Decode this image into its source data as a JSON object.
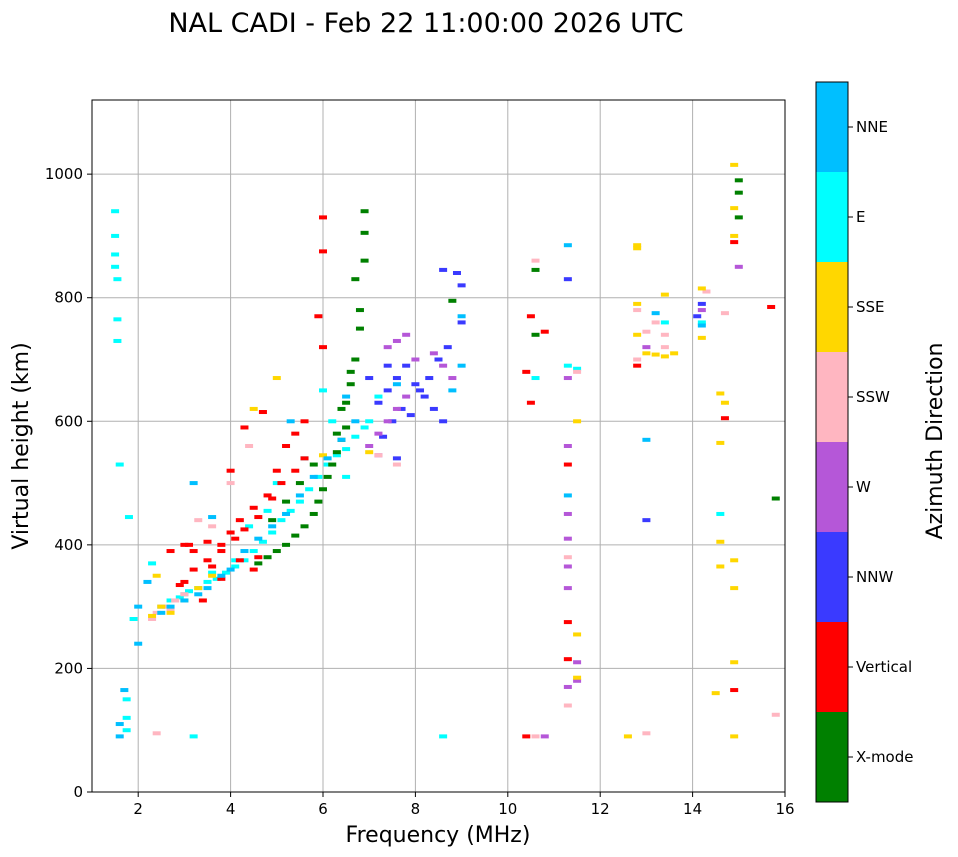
{
  "chart_data": {
    "type": "scatter",
    "title": "NAL CADI - Feb 22 11:00:00 2026 UTC",
    "xlabel": "Frequency (MHz)",
    "ylabel": "Virtual height (km)",
    "xlim": [
      1,
      16
    ],
    "ylim": [
      0,
      1120
    ],
    "xticks": [
      2,
      4,
      6,
      8,
      10,
      12,
      14,
      16
    ],
    "yticks": [
      0,
      200,
      400,
      600,
      800,
      1000
    ],
    "grid": true,
    "colorbar": {
      "label": "Azimuth Direction",
      "categories": [
        {
          "name": "X-mode",
          "color": "#008000"
        },
        {
          "name": "Vertical",
          "color": "#ff0000"
        },
        {
          "name": "NNW",
          "color": "#3a3aff"
        },
        {
          "name": "W",
          "color": "#b557d8"
        },
        {
          "name": "SSW",
          "color": "#ffb6c1"
        },
        {
          "name": "SSE",
          "color": "#ffd700"
        },
        {
          "name": "E",
          "color": "#00ffff"
        },
        {
          "name": "NNE",
          "color": "#00bfff"
        }
      ]
    },
    "series": [
      {
        "name": "E",
        "points": [
          [
            1.5,
            940
          ],
          [
            1.5,
            900
          ],
          [
            1.5,
            870
          ],
          [
            1.5,
            850
          ],
          [
            1.55,
            830
          ],
          [
            1.55,
            765
          ],
          [
            1.55,
            730
          ],
          [
            1.6,
            530
          ],
          [
            1.8,
            445
          ],
          [
            1.75,
            150
          ],
          [
            1.75,
            120
          ],
          [
            1.75,
            100
          ],
          [
            1.9,
            280
          ],
          [
            2.3,
            370
          ],
          [
            2.5,
            300
          ],
          [
            2.7,
            310
          ],
          [
            3.0,
            320
          ],
          [
            3.3,
            330
          ],
          [
            3.5,
            340
          ],
          [
            3.7,
            345
          ],
          [
            3.9,
            355
          ],
          [
            4.1,
            365
          ],
          [
            4.3,
            375
          ],
          [
            4.5,
            390
          ],
          [
            4.7,
            405
          ],
          [
            4.9,
            420
          ],
          [
            5.1,
            440
          ],
          [
            5.3,
            455
          ],
          [
            5.5,
            470
          ],
          [
            5.7,
            490
          ],
          [
            5.9,
            510
          ],
          [
            6.1,
            530
          ],
          [
            6.3,
            545
          ],
          [
            6.5,
            555
          ],
          [
            6.7,
            575
          ],
          [
            6.9,
            590
          ],
          [
            3.2,
            90
          ],
          [
            8.6,
            90
          ],
          [
            6.0,
            650
          ],
          [
            6.5,
            510
          ],
          [
            2.9,
            315
          ],
          [
            3.1,
            325
          ],
          [
            4.4,
            430
          ],
          [
            4.8,
            455
          ],
          [
            5.6,
            540
          ],
          [
            6.2,
            600
          ],
          [
            7.2,
            640
          ],
          [
            7.0,
            600
          ],
          [
            11.3,
            690
          ],
          [
            11.5,
            685
          ],
          [
            14.2,
            760
          ],
          [
            13.4,
            760
          ],
          [
            14.6,
            450
          ],
          [
            4.1,
            375
          ],
          [
            3.6,
            355
          ],
          [
            5.0,
            500
          ],
          [
            10.6,
            670
          ]
        ]
      },
      {
        "name": "Vertical",
        "points": [
          [
            3.0,
            340
          ],
          [
            3.2,
            360
          ],
          [
            3.5,
            375
          ],
          [
            3.8,
            390
          ],
          [
            4.1,
            410
          ],
          [
            4.3,
            425
          ],
          [
            4.6,
            445
          ],
          [
            4.9,
            475
          ],
          [
            5.1,
            500
          ],
          [
            5.4,
            520
          ],
          [
            5.6,
            540
          ],
          [
            3.0,
            400
          ],
          [
            3.2,
            390
          ],
          [
            3.5,
            405
          ],
          [
            3.8,
            400
          ],
          [
            4.0,
            420
          ],
          [
            4.2,
            440
          ],
          [
            4.5,
            460
          ],
          [
            4.8,
            480
          ],
          [
            5.0,
            520
          ],
          [
            4.0,
            520
          ],
          [
            4.3,
            590
          ],
          [
            4.7,
            615
          ],
          [
            5.4,
            580
          ],
          [
            5.9,
            770
          ],
          [
            6.0,
            720
          ],
          [
            6.0,
            875
          ],
          [
            6.0,
            930
          ],
          [
            3.8,
            345
          ],
          [
            4.5,
            360
          ],
          [
            3.6,
            365
          ],
          [
            5.2,
            560
          ],
          [
            5.6,
            600
          ],
          [
            10.4,
            680
          ],
          [
            10.4,
            90
          ],
          [
            10.5,
            630
          ],
          [
            10.5,
            770
          ],
          [
            10.8,
            745
          ],
          [
            11.3,
            530
          ],
          [
            11.3,
            275
          ],
          [
            11.3,
            215
          ],
          [
            14.7,
            605
          ],
          [
            14.9,
            890
          ],
          [
            14.9,
            165
          ],
          [
            15.7,
            785
          ],
          [
            12.8,
            690
          ],
          [
            2.7,
            390
          ],
          [
            4.2,
            375
          ],
          [
            4.6,
            380
          ],
          [
            3.4,
            310
          ],
          [
            3.1,
            400
          ],
          [
            2.9,
            335
          ]
        ]
      },
      {
        "name": "X-mode",
        "points": [
          [
            4.6,
            370
          ],
          [
            4.8,
            380
          ],
          [
            5.0,
            390
          ],
          [
            5.2,
            400
          ],
          [
            5.4,
            415
          ],
          [
            5.6,
            430
          ],
          [
            5.8,
            450
          ],
          [
            5.9,
            470
          ],
          [
            6.0,
            490
          ],
          [
            6.1,
            510
          ],
          [
            6.2,
            530
          ],
          [
            6.3,
            550
          ],
          [
            6.4,
            570
          ],
          [
            6.5,
            590
          ],
          [
            6.5,
            630
          ],
          [
            6.6,
            660
          ],
          [
            6.7,
            700
          ],
          [
            6.8,
            750
          ],
          [
            6.8,
            780
          ],
          [
            6.9,
            860
          ],
          [
            6.9,
            940
          ],
          [
            4.9,
            440
          ],
          [
            5.2,
            470
          ],
          [
            5.5,
            500
          ],
          [
            5.8,
            530
          ],
          [
            6.3,
            580
          ],
          [
            6.4,
            620
          ],
          [
            6.6,
            680
          ],
          [
            10.6,
            740
          ],
          [
            10.6,
            845
          ],
          [
            15.0,
            990
          ],
          [
            15.0,
            970
          ],
          [
            15.0,
            930
          ],
          [
            15.8,
            475
          ],
          [
            8.8,
            795
          ],
          [
            6.7,
            830
          ],
          [
            6.9,
            905
          ]
        ]
      },
      {
        "name": "NNW",
        "points": [
          [
            7.2,
            630
          ],
          [
            7.4,
            650
          ],
          [
            7.6,
            670
          ],
          [
            7.8,
            690
          ],
          [
            8.0,
            660
          ],
          [
            8.2,
            640
          ],
          [
            8.4,
            620
          ],
          [
            8.6,
            600
          ],
          [
            7.5,
            600
          ],
          [
            7.7,
            620
          ],
          [
            7.9,
            610
          ],
          [
            8.1,
            650
          ],
          [
            8.3,
            670
          ],
          [
            8.5,
            700
          ],
          [
            8.7,
            720
          ],
          [
            9.0,
            760
          ],
          [
            8.6,
            845
          ],
          [
            8.9,
            840
          ],
          [
            9.0,
            820
          ],
          [
            7.6,
            540
          ],
          [
            7.4,
            690
          ],
          [
            11.3,
            830
          ],
          [
            13.0,
            440
          ],
          [
            14.2,
            790
          ],
          [
            14.1,
            770
          ],
          [
            7.0,
            670
          ],
          [
            7.3,
            575
          ]
        ]
      },
      {
        "name": "W",
        "points": [
          [
            7.0,
            560
          ],
          [
            7.2,
            580
          ],
          [
            7.4,
            600
          ],
          [
            7.6,
            620
          ],
          [
            7.8,
            640
          ],
          [
            8.0,
            700
          ],
          [
            7.2,
            545
          ],
          [
            7.4,
            720
          ],
          [
            7.6,
            730
          ],
          [
            7.8,
            740
          ],
          [
            8.4,
            710
          ],
          [
            8.6,
            690
          ],
          [
            8.8,
            670
          ],
          [
            11.3,
            670
          ],
          [
            11.3,
            560
          ],
          [
            11.3,
            450
          ],
          [
            11.3,
            410
          ],
          [
            11.3,
            330
          ],
          [
            11.3,
            170
          ],
          [
            11.5,
            210
          ],
          [
            11.5,
            180
          ],
          [
            10.8,
            90
          ],
          [
            13.0,
            720
          ],
          [
            14.2,
            780
          ],
          [
            15.0,
            850
          ],
          [
            11.3,
            365
          ]
        ]
      },
      {
        "name": "SSW",
        "points": [
          [
            2.3,
            280
          ],
          [
            2.4,
            290
          ],
          [
            2.6,
            300
          ],
          [
            2.8,
            310
          ],
          [
            3.0,
            320
          ],
          [
            2.4,
            95
          ],
          [
            2.5,
            300
          ],
          [
            2.7,
            295
          ],
          [
            3.3,
            440
          ],
          [
            3.6,
            430
          ],
          [
            4.0,
            500
          ],
          [
            4.4,
            560
          ],
          [
            7.6,
            530
          ],
          [
            7.2,
            545
          ],
          [
            10.6,
            860
          ],
          [
            10.6,
            90
          ],
          [
            11.3,
            140
          ],
          [
            11.3,
            380
          ],
          [
            12.8,
            780
          ],
          [
            12.8,
            700
          ],
          [
            13.0,
            745
          ],
          [
            13.2,
            760
          ],
          [
            13.4,
            740
          ],
          [
            13.0,
            95
          ],
          [
            14.3,
            810
          ],
          [
            14.7,
            775
          ],
          [
            15.8,
            125
          ],
          [
            11.5,
            680
          ],
          [
            13.4,
            720
          ]
        ]
      },
      {
        "name": "SSE",
        "points": [
          [
            2.3,
            285
          ],
          [
            2.5,
            300
          ],
          [
            2.7,
            290
          ],
          [
            3.0,
            310
          ],
          [
            3.3,
            330
          ],
          [
            3.6,
            350
          ],
          [
            2.4,
            350
          ],
          [
            4.5,
            620
          ],
          [
            5.0,
            670
          ],
          [
            6.0,
            545
          ],
          [
            7.0,
            550
          ],
          [
            11.5,
            600
          ],
          [
            11.5,
            255
          ],
          [
            11.5,
            185
          ],
          [
            12.6,
            90
          ],
          [
            12.8,
            880
          ],
          [
            12.8,
            885
          ],
          [
            12.8,
            790
          ],
          [
            12.8,
            740
          ],
          [
            13.0,
            710
          ],
          [
            13.4,
            705
          ],
          [
            13.6,
            710
          ],
          [
            13.4,
            805
          ],
          [
            14.2,
            815
          ],
          [
            14.2,
            735
          ],
          [
            14.5,
            160
          ],
          [
            14.6,
            645
          ],
          [
            14.7,
            630
          ],
          [
            14.6,
            565
          ],
          [
            14.6,
            405
          ],
          [
            14.6,
            365
          ],
          [
            14.9,
            375
          ],
          [
            14.9,
            330
          ],
          [
            14.9,
            210
          ],
          [
            14.9,
            90
          ],
          [
            14.9,
            900
          ],
          [
            14.9,
            945
          ],
          [
            14.9,
            1015
          ],
          [
            13.2,
            708
          ]
        ]
      },
      {
        "name": "NNE",
        "points": [
          [
            2.5,
            290
          ],
          [
            2.7,
            300
          ],
          [
            3.0,
            310
          ],
          [
            3.3,
            320
          ],
          [
            3.5,
            330
          ],
          [
            3.8,
            350
          ],
          [
            4.0,
            360
          ],
          [
            4.3,
            390
          ],
          [
            4.6,
            410
          ],
          [
            4.9,
            430
          ],
          [
            5.2,
            450
          ],
          [
            5.5,
            480
          ],
          [
            5.8,
            510
          ],
          [
            6.1,
            540
          ],
          [
            6.4,
            570
          ],
          [
            6.7,
            600
          ],
          [
            3.2,
            500
          ],
          [
            3.6,
            445
          ],
          [
            5.3,
            600
          ],
          [
            6.5,
            640
          ],
          [
            9.0,
            770
          ],
          [
            9.0,
            690
          ],
          [
            8.8,
            650
          ],
          [
            7.6,
            660
          ],
          [
            11.3,
            480
          ],
          [
            11.3,
            885
          ],
          [
            13.0,
            570
          ],
          [
            13.2,
            775
          ],
          [
            14.2,
            755
          ],
          [
            2.0,
            300
          ],
          [
            2.0,
            240
          ],
          [
            1.6,
            90
          ],
          [
            1.6,
            110
          ],
          [
            1.7,
            165
          ],
          [
            2.2,
            340
          ]
        ]
      }
    ]
  }
}
